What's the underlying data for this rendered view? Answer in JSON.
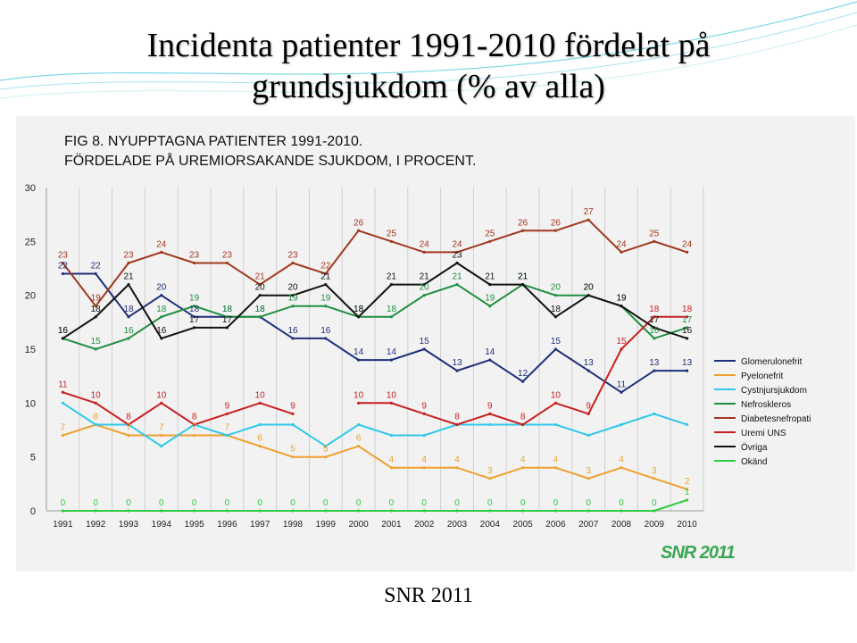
{
  "slide": {
    "title_line1": "Incidenta patienter 1991-2010 fördelat på",
    "title_line2": "grundsjukdom (% av alla)",
    "footer": "SNR 2011",
    "logo_text": "SNR 2011"
  },
  "chart_data": {
    "type": "line",
    "title_line1": "FIG 8. NYUPPTAGNA PATIENTER 1991-2010.",
    "title_line2": "FÖRDELADE PÅ UREMIORSAKANDE SJUKDOM, I PROCENT.",
    "xlabel": "",
    "ylabel": "",
    "ylim": [
      0,
      30
    ],
    "yticks": [
      0,
      5,
      10,
      15,
      20,
      25,
      30
    ],
    "grid": "vertical",
    "legend_position": "right",
    "categories": [
      "1991",
      "1992",
      "1993",
      "1994",
      "1995",
      "1996",
      "1997",
      "1998",
      "1999",
      "2000",
      "2001",
      "2002",
      "2003",
      "2004",
      "2005",
      "2006",
      "2007",
      "2008",
      "2009",
      "2010"
    ],
    "series": [
      {
        "name": "Glomerulonefrit",
        "color": "#1f2f7a",
        "labels": true,
        "values": [
          22,
          22,
          18,
          20,
          18,
          18,
          18,
          16,
          16,
          14,
          14,
          15,
          13,
          14,
          12,
          15,
          13,
          11,
          13,
          13
        ]
      },
      {
        "name": "Pyelonefrit",
        "color": "#f0a030",
        "labels": true,
        "values": [
          7,
          8,
          7,
          7,
          7,
          7,
          6,
          5,
          5,
          6,
          4,
          4,
          4,
          3,
          4,
          4,
          3,
          4,
          3,
          2
        ]
      },
      {
        "name": "Cystnjursjukdom",
        "color": "#30c8e8",
        "labels": false,
        "values": [
          10,
          8,
          8,
          6,
          8,
          7,
          8,
          8,
          6,
          8,
          7,
          7,
          8,
          8,
          8,
          8,
          7,
          8,
          9,
          8
        ]
      },
      {
        "name": "Nefroskleros",
        "color": "#1f8f3f",
        "labels": true,
        "values": [
          16,
          15,
          16,
          18,
          19,
          18,
          18,
          19,
          19,
          18,
          18,
          20,
          21,
          19,
          21,
          20,
          20,
          19,
          16,
          17
        ]
      },
      {
        "name": "Diabetesnefropati",
        "color": "#a0381e",
        "labels": true,
        "values": [
          23,
          19,
          23,
          24,
          23,
          23,
          21,
          23,
          22,
          26,
          25,
          24,
          24,
          25,
          26,
          26,
          27,
          24,
          25,
          24
        ]
      },
      {
        "name": "Uremi UNS",
        "color": "#c82020",
        "labels": true,
        "values": [
          11,
          10,
          8,
          10,
          8,
          9,
          10,
          9,
          null,
          10,
          10,
          9,
          8,
          9,
          8,
          10,
          9,
          15,
          18,
          18
        ]
      },
      {
        "name": "Övriga",
        "color": "#111111",
        "labels": true,
        "values": [
          16,
          18,
          21,
          16,
          17,
          17,
          20,
          20,
          21,
          18,
          21,
          21,
          23,
          21,
          21,
          18,
          20,
          19,
          17,
          16
        ]
      },
      {
        "name": "Okänd",
        "color": "#2ecc40",
        "labels": true,
        "values": [
          0,
          0,
          0,
          0,
          0,
          0,
          0,
          0,
          0,
          0,
          0,
          0,
          0,
          0,
          0,
          0,
          0,
          0,
          0,
          1
        ]
      }
    ]
  }
}
